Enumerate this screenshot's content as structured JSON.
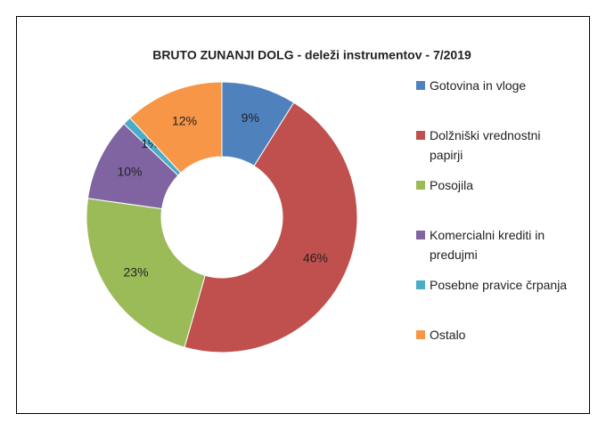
{
  "chart_data": {
    "type": "donut",
    "title": "BRUTO ZUNANJI DOLG - deleži instrumentov - 7/2019",
    "categories": [
      "Gotovina in vloge",
      "Dolžniški vrednostni papirji",
      "Posojila",
      "Komercialni krediti in predujmi",
      "Posebne pravice črpanja",
      "Ostalo"
    ],
    "values": [
      9,
      46,
      23,
      10,
      1,
      12
    ],
    "value_labels": [
      "9%",
      "46%",
      "23%",
      "10%",
      "1%",
      "12%"
    ],
    "colors": [
      "#4f81bd",
      "#c0504d",
      "#9bbb59",
      "#8064a2",
      "#4bacc6",
      "#f79646"
    ],
    "legend": "right"
  }
}
